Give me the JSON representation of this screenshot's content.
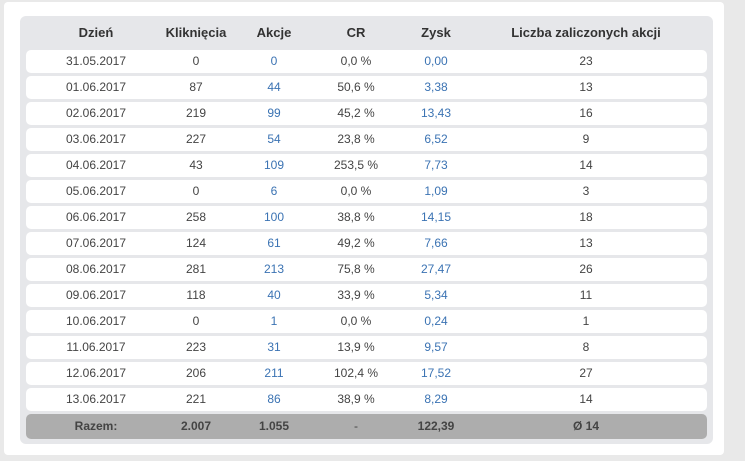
{
  "table": {
    "headers": {
      "date": "Dzień",
      "clicks": "Kliknięcia",
      "actions": "Akcje",
      "cr": "CR",
      "profit": "Zysk",
      "credited": "Liczba zaliczonych akcji"
    },
    "rows": [
      {
        "date": "31.05.2017",
        "clicks": "0",
        "actions": "0",
        "cr": "0,0 %",
        "profit": "0,00",
        "credited": "23"
      },
      {
        "date": "01.06.2017",
        "clicks": "87",
        "actions": "44",
        "cr": "50,6 %",
        "profit": "3,38",
        "credited": "13"
      },
      {
        "date": "02.06.2017",
        "clicks": "219",
        "actions": "99",
        "cr": "45,2 %",
        "profit": "13,43",
        "credited": "16"
      },
      {
        "date": "03.06.2017",
        "clicks": "227",
        "actions": "54",
        "cr": "23,8 %",
        "profit": "6,52",
        "credited": "9"
      },
      {
        "date": "04.06.2017",
        "clicks": "43",
        "actions": "109",
        "cr": "253,5 %",
        "profit": "7,73",
        "credited": "14"
      },
      {
        "date": "05.06.2017",
        "clicks": "0",
        "actions": "6",
        "cr": "0,0 %",
        "profit": "1,09",
        "credited": "3"
      },
      {
        "date": "06.06.2017",
        "clicks": "258",
        "actions": "100",
        "cr": "38,8 %",
        "profit": "14,15",
        "credited": "18"
      },
      {
        "date": "07.06.2017",
        "clicks": "124",
        "actions": "61",
        "cr": "49,2 %",
        "profit": "7,66",
        "credited": "13"
      },
      {
        "date": "08.06.2017",
        "clicks": "281",
        "actions": "213",
        "cr": "75,8 %",
        "profit": "27,47",
        "credited": "26"
      },
      {
        "date": "09.06.2017",
        "clicks": "118",
        "actions": "40",
        "cr": "33,9 %",
        "profit": "5,34",
        "credited": "11"
      },
      {
        "date": "10.06.2017",
        "clicks": "0",
        "actions": "1",
        "cr": "0,0 %",
        "profit": "0,24",
        "credited": "1"
      },
      {
        "date": "11.06.2017",
        "clicks": "223",
        "actions": "31",
        "cr": "13,9 %",
        "profit": "9,57",
        "credited": "8"
      },
      {
        "date": "12.06.2017",
        "clicks": "206",
        "actions": "211",
        "cr": "102,4 %",
        "profit": "17,52",
        "credited": "27"
      },
      {
        "date": "13.06.2017",
        "clicks": "221",
        "actions": "86",
        "cr": "38,9 %",
        "profit": "8,29",
        "credited": "14"
      }
    ],
    "totals": {
      "label": "Razem:",
      "clicks": "2.007",
      "actions": "1.055",
      "cr": "-",
      "profit": "122,39",
      "credited": "Ø 14"
    }
  },
  "colors": {
    "link": "#3b73b3",
    "panel": "#e6e7ea",
    "total_row": "#adadad"
  }
}
